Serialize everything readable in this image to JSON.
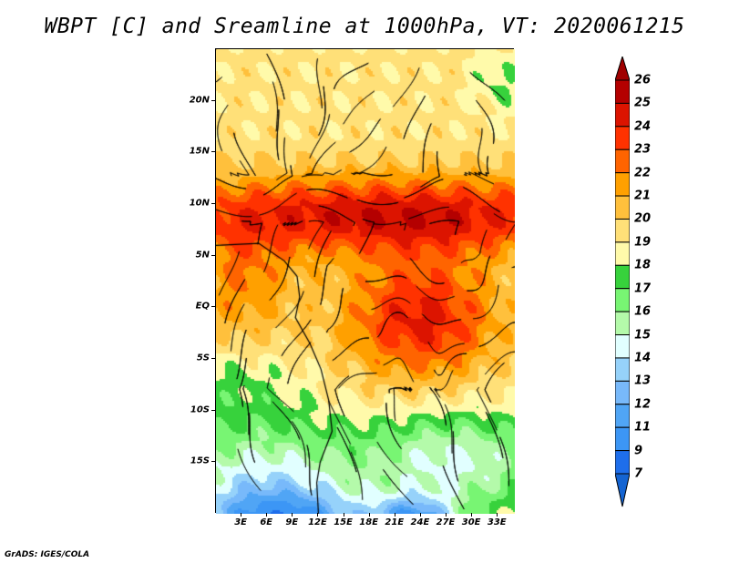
{
  "title": "WBPT [C] and Sreamline at 1000hPa, VT: 2020061215",
  "footer": "GrADS: IGES/COLA",
  "map": {
    "lon_range": [
      0,
      35
    ],
    "lat_range": [
      -20,
      25
    ],
    "lat_ticks": [
      {
        "v": 20,
        "label": "20N"
      },
      {
        "v": 15,
        "label": "15N"
      },
      {
        "v": 10,
        "label": "10N"
      },
      {
        "v": 5,
        "label": "5N"
      },
      {
        "v": 0,
        "label": "EQ"
      },
      {
        "v": -5,
        "label": "5S"
      },
      {
        "v": -10,
        "label": "10S"
      },
      {
        "v": -15,
        "label": "15S"
      }
    ],
    "lon_ticks": [
      {
        "v": 3,
        "label": "3E"
      },
      {
        "v": 6,
        "label": "6E"
      },
      {
        "v": 9,
        "label": "9E"
      },
      {
        "v": 12,
        "label": "12E"
      },
      {
        "v": 15,
        "label": "15E"
      },
      {
        "v": 18,
        "label": "18E"
      },
      {
        "v": 21,
        "label": "21E"
      },
      {
        "v": 24,
        "label": "24E"
      },
      {
        "v": 27,
        "label": "27E"
      },
      {
        "v": 30,
        "label": "30E"
      },
      {
        "v": 33,
        "label": "33E"
      }
    ]
  },
  "colorbar": {
    "labels": [
      "26",
      "25",
      "24",
      "23",
      "22",
      "21",
      "20",
      "19",
      "18",
      "17",
      "16",
      "15",
      "14",
      "13",
      "12",
      "11",
      "9",
      "7"
    ],
    "levels": [
      7,
      9,
      11,
      12,
      13,
      14,
      15,
      16,
      17,
      18,
      19,
      20,
      21,
      22,
      23,
      24,
      25,
      26
    ],
    "colors_low_to_high": [
      "#1464d2",
      "#1e6eeb",
      "#3c96f5",
      "#50a5f5",
      "#78b9fa",
      "#96d2fa",
      "#e1ffff",
      "#b4faaa",
      "#78f573",
      "#37d23c",
      "#fffaaa",
      "#ffe078",
      "#ffc03c",
      "#ffa000",
      "#ff6400",
      "#ff3200",
      "#dc1400",
      "#b40000",
      "#a00000"
    ]
  }
}
